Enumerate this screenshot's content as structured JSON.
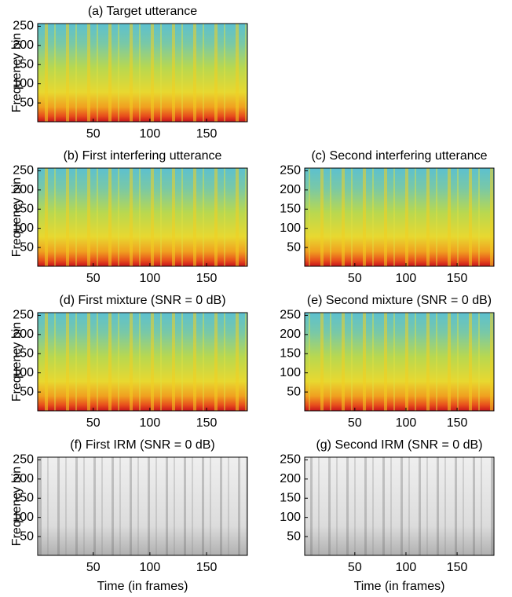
{
  "chart_data": [
    {
      "type": "heatmap",
      "title": "(a) Target utterance",
      "colormap": "jet",
      "ylabel": "Frequency bin",
      "xlim": [
        1,
        186
      ],
      "ylim": [
        1,
        257
      ],
      "xticks": [
        50,
        100,
        150
      ],
      "yticks": [
        50,
        100,
        150,
        200,
        250
      ]
    },
    {
      "type": "heatmap",
      "title": "(b) First interfering utterance",
      "colormap": "jet",
      "ylabel": "Frequency bin",
      "xlim": [
        1,
        186
      ],
      "ylim": [
        1,
        257
      ],
      "xticks": [
        50,
        100,
        150
      ],
      "yticks": [
        50,
        100,
        150,
        200,
        250
      ]
    },
    {
      "type": "heatmap",
      "title": "(c) Second interfering utterance",
      "colormap": "jet",
      "xlim": [
        1,
        186
      ],
      "ylim": [
        1,
        257
      ],
      "xticks": [
        50,
        100,
        150
      ],
      "yticks": [
        50,
        100,
        150,
        200,
        250
      ]
    },
    {
      "type": "heatmap",
      "title": "(d) First mixture (SNR = 0 dB)",
      "colormap": "jet",
      "ylabel": "Frequency bin",
      "xlim": [
        1,
        186
      ],
      "ylim": [
        1,
        257
      ],
      "xticks": [
        50,
        100,
        150
      ],
      "yticks": [
        50,
        100,
        150,
        200,
        250
      ]
    },
    {
      "type": "heatmap",
      "title": "(e) Second mixture (SNR = 0 dB)",
      "colormap": "jet",
      "xlim": [
        1,
        186
      ],
      "ylim": [
        1,
        257
      ],
      "xticks": [
        50,
        100,
        150
      ],
      "yticks": [
        50,
        100,
        150,
        200,
        250
      ]
    },
    {
      "type": "heatmap",
      "title": "(f) First IRM (SNR = 0 dB)",
      "colormap": "gray",
      "ylabel": "Frequency bin",
      "xlabel": "Time (in frames)",
      "xlim": [
        1,
        186
      ],
      "ylim": [
        1,
        257
      ],
      "xticks": [
        50,
        100,
        150
      ],
      "yticks": [
        50,
        100,
        150,
        200,
        250
      ]
    },
    {
      "type": "heatmap",
      "title": "(g) Second IRM (SNR = 0 dB)",
      "colormap": "gray",
      "xlabel": "Time (in frames)",
      "xlim": [
        1,
        186
      ],
      "ylim": [
        1,
        257
      ],
      "xticks": [
        50,
        100,
        150
      ],
      "yticks": [
        50,
        100,
        150,
        200,
        250
      ]
    }
  ]
}
